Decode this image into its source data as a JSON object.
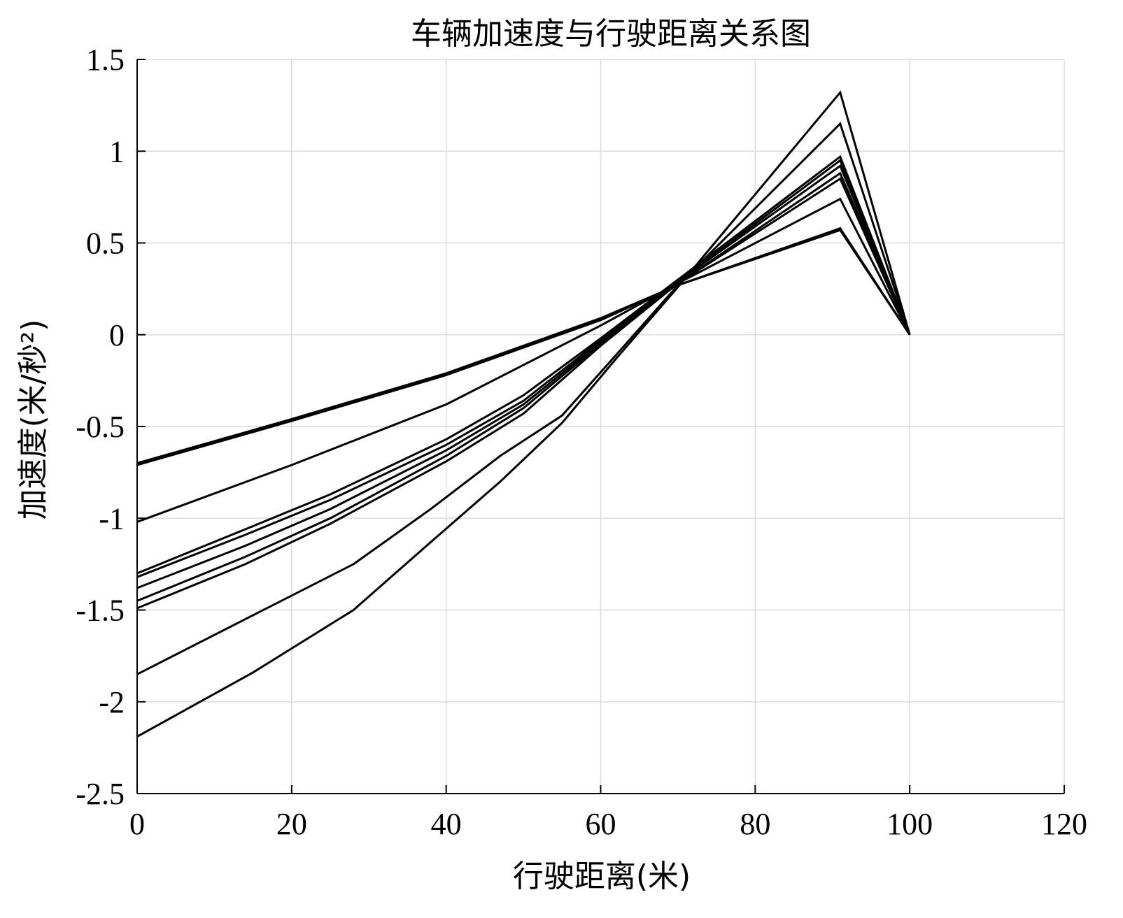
{
  "chart_data": {
    "type": "line",
    "title": "车辆加速度与行驶距离关系图",
    "xlabel": "行驶距离(米)",
    "ylabel": "加速度(米/秒²)",
    "xlim": [
      0,
      120
    ],
    "ylim": [
      -2.5,
      1.5
    ],
    "xticks": [
      0,
      20,
      40,
      60,
      80,
      100,
      120
    ],
    "yticks": [
      -2.5,
      -2,
      -1.5,
      -1,
      -0.5,
      0,
      0.5,
      1,
      1.5
    ],
    "xtick_labels": [
      "0",
      "20",
      "40",
      "60",
      "80",
      "100",
      "120"
    ],
    "ytick_labels": [
      "-2.5",
      "-2",
      "-1.5",
      "-1",
      "-0.5",
      "0",
      "0.5",
      "1",
      "1.5"
    ],
    "grid": true,
    "line_color": "#000000",
    "series": [
      {
        "x": [
          0,
          20,
          40,
          60,
          70,
          91,
          100
        ],
        "y": [
          -0.7,
          -0.46,
          -0.21,
          0.09,
          0.27,
          0.57,
          0
        ]
      },
      {
        "x": [
          0,
          20,
          40,
          60,
          70,
          91,
          100
        ],
        "y": [
          -0.71,
          -0.47,
          -0.22,
          0.08,
          0.27,
          0.58,
          0
        ]
      },
      {
        "x": [
          0,
          20,
          40,
          60,
          70,
          91,
          100
        ],
        "y": [
          -1.02,
          -0.71,
          -0.38,
          0.05,
          0.28,
          0.74,
          0
        ]
      },
      {
        "x": [
          0,
          14,
          25,
          40,
          50,
          60,
          70,
          91,
          100
        ],
        "y": [
          -1.3,
          -1.06,
          -0.87,
          -0.57,
          -0.33,
          -0.02,
          0.3,
          0.97,
          0
        ]
      },
      {
        "x": [
          0,
          14,
          25,
          40,
          50,
          60,
          70,
          91,
          100
        ],
        "y": [
          -1.32,
          -1.09,
          -0.9,
          -0.6,
          -0.36,
          -0.03,
          0.29,
          0.95,
          0
        ]
      },
      {
        "x": [
          0,
          14,
          25,
          40,
          50,
          60,
          70,
          91,
          100
        ],
        "y": [
          -1.38,
          -1.15,
          -0.95,
          -0.63,
          -0.38,
          -0.04,
          0.29,
          0.92,
          0
        ]
      },
      {
        "x": [
          0,
          14,
          25,
          40,
          50,
          60,
          70,
          91,
          100
        ],
        "y": [
          -1.45,
          -1.21,
          -1.0,
          -0.66,
          -0.4,
          -0.05,
          0.28,
          0.88,
          0
        ]
      },
      {
        "x": [
          0,
          14,
          25,
          40,
          50,
          60,
          70,
          91,
          100
        ],
        "y": [
          -1.49,
          -1.25,
          -1.03,
          -0.69,
          -0.43,
          -0.06,
          0.28,
          0.85,
          0
        ]
      },
      {
        "x": [
          0,
          14,
          28,
          38,
          47,
          55,
          62,
          70,
          91,
          100
        ],
        "y": [
          -1.85,
          -1.55,
          -1.25,
          -0.95,
          -0.66,
          -0.44,
          -0.11,
          0.27,
          1.15,
          0
        ]
      },
      {
        "x": [
          0,
          15,
          28,
          38,
          47,
          55,
          62,
          70,
          91,
          100
        ],
        "y": [
          -2.19,
          -1.84,
          -1.5,
          -1.13,
          -0.8,
          -0.48,
          -0.13,
          0.26,
          1.32,
          0
        ]
      }
    ]
  }
}
